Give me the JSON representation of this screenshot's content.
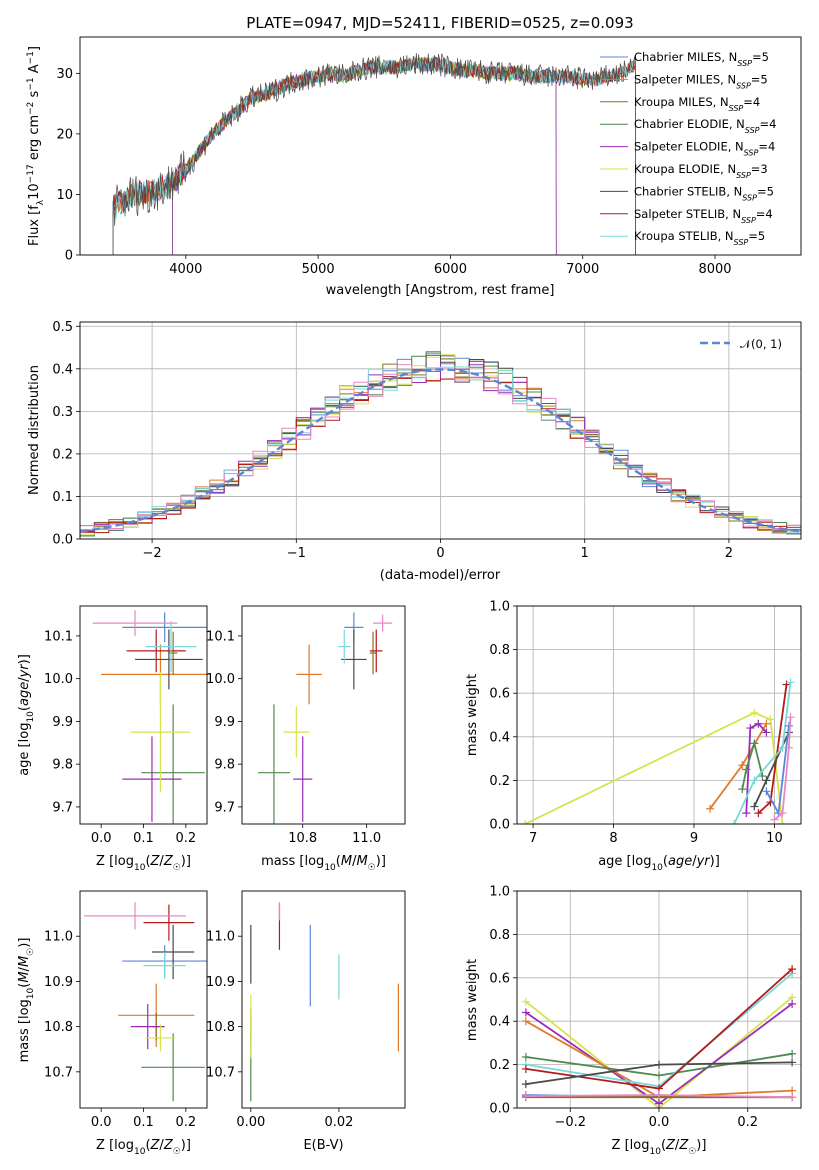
{
  "figure": {
    "title": "PLATE=0947, MJD=52411, FIBERID=0525, z=0.093"
  },
  "colors": {
    "Chabrier MILES": "#5b87d6",
    "Salpeter MILES": "#e07b2b",
    "Kroupa MILES": "#8f6f1a",
    "Chabrier ELODIE": "#4f8a4f",
    "Salpeter ELODIE": "#9a2bb8",
    "Kroupa ELODIE": "#d7e34a",
    "Chabrier STELIB": "#4a4a4a",
    "Salpeter STELIB": "#b31b1b",
    "Kroupa STELIB": "#7ad8dc",
    "pink": "#e887c4",
    "normal": "#5b87d6"
  },
  "chart_data": [
    {
      "id": "spectrum",
      "type": "line",
      "xlabel": "wavelength [Angstrom, rest frame]",
      "ylabel": "Flux [f_λ 10^-17 erg cm^-2 s^-1 A^-1]",
      "xlim": [
        3200,
        8650
      ],
      "ylim": [
        0,
        36
      ],
      "xticks": [
        4000,
        5000,
        6000,
        7000,
        8000
      ],
      "yticks": [
        0,
        10,
        20,
        30
      ],
      "grid": false,
      "legend_position": "right",
      "legend": [
        {
          "series": "Chabrier MILES",
          "label": "Chabrier MILES, N",
          "sub": "SSP",
          "n": "=5"
        },
        {
          "series": "Salpeter MILES",
          "label": "Salpeter MILES, N",
          "sub": "SSP",
          "n": "=5"
        },
        {
          "series": "Kroupa MILES",
          "label": "Kroupa MILES, N",
          "sub": "SSP",
          "n": "=4"
        },
        {
          "series": "Chabrier ELODIE",
          "label": "Chabrier ELODIE, N",
          "sub": "SSP",
          "n": "=4"
        },
        {
          "series": "Salpeter ELODIE",
          "label": "Salpeter ELODIE, N",
          "sub": "SSP",
          "n": "=4"
        },
        {
          "series": "Kroupa ELODIE",
          "label": "Kroupa ELODIE, N",
          "sub": "SSP",
          "n": "=3"
        },
        {
          "series": "Chabrier STELIB",
          "label": "Chabrier STELIB, N",
          "sub": "SSP",
          "n": "=5"
        },
        {
          "series": "Salpeter STELIB",
          "label": "Salpeter STELIB, N",
          "sub": "SSP",
          "n": "=4"
        },
        {
          "series": "Kroupa STELIB",
          "label": "Kroupa STELIB, N",
          "sub": "SSP",
          "n": "=5"
        }
      ],
      "continuum": [
        [
          3450,
          8
        ],
        [
          3600,
          10
        ],
        [
          3700,
          10
        ],
        [
          3800,
          11
        ],
        [
          3900,
          12
        ],
        [
          4000,
          14
        ],
        [
          4100,
          17
        ],
        [
          4200,
          20
        ],
        [
          4300,
          22
        ],
        [
          4400,
          24
        ],
        [
          4500,
          26
        ],
        [
          4600,
          26.5
        ],
        [
          4700,
          27.5
        ],
        [
          4800,
          28.5
        ],
        [
          4900,
          29
        ],
        [
          5000,
          29.5
        ],
        [
          5100,
          30
        ],
        [
          5200,
          29.5
        ],
        [
          5300,
          30.5
        ],
        [
          5400,
          31
        ],
        [
          5500,
          31
        ],
        [
          5600,
          31
        ],
        [
          5700,
          31.5
        ],
        [
          5800,
          31.5
        ],
        [
          5900,
          31.5
        ],
        [
          6000,
          31
        ],
        [
          6100,
          30.5
        ],
        [
          6200,
          30.5
        ],
        [
          6300,
          30
        ],
        [
          6400,
          30
        ],
        [
          6500,
          30
        ],
        [
          6600,
          29.5
        ],
        [
          6700,
          29.5
        ],
        [
          6800,
          29.5
        ],
        [
          6900,
          29.5
        ],
        [
          7000,
          29
        ],
        [
          7100,
          29
        ],
        [
          7200,
          29.5
        ],
        [
          7300,
          30
        ],
        [
          7400,
          31.5
        ]
      ],
      "coverage": {
        "MILES": [
          3450,
          7400
        ],
        "ELODIE": [
          3900,
          6800
        ],
        "STELIB": [
          3450,
          7400
        ]
      },
      "drops_to_zero_at": [
        3500,
        3900,
        6800,
        7400
      ]
    },
    {
      "id": "residuals",
      "type": "line",
      "xlabel": "(data-model)/error",
      "ylabel": "Normed distribution",
      "xlim": [
        -2.5,
        2.5
      ],
      "ylim": [
        0,
        0.51
      ],
      "xticks": [
        -2,
        -1,
        0,
        1,
        2
      ],
      "yticks": [
        0.0,
        0.1,
        0.2,
        0.3,
        0.4,
        0.5
      ],
      "grid": true,
      "legend_position": "top-right",
      "legend": [
        {
          "series": "normal",
          "label": "𝒩(0, 1)"
        }
      ],
      "bin_width": 0.1,
      "series": [
        {
          "name": "Chabrier MILES",
          "values": [
            0.017,
            0.023,
            0.026,
            0.033,
            0.038,
            0.045,
            0.053,
            0.062,
            0.072,
            0.084,
            0.097,
            0.111,
            0.126,
            0.142,
            0.16,
            0.178,
            0.197,
            0.216,
            0.236,
            0.256,
            0.276,
            0.296,
            0.314,
            0.332,
            0.349,
            0.364,
            0.377,
            0.388,
            0.397,
            0.404,
            0.408,
            0.41,
            0.41,
            0.408,
            0.404,
            0.397,
            0.388,
            0.377,
            0.364,
            0.349,
            0.332,
            0.314,
            0.296,
            0.276,
            0.256,
            0.236,
            0.216,
            0.197,
            0.178,
            0.16
          ]
        },
        {
          "name": "Salpeter MILES",
          "values": [
            0.021,
            0.02,
            0.035,
            0.031,
            0.038,
            0.043,
            0.058,
            0.063,
            0.071,
            0.079,
            0.091,
            0.116,
            0.127,
            0.142,
            0.166,
            0.175,
            0.2,
            0.212,
            0.238,
            0.26,
            0.27,
            0.3,
            0.311,
            0.327,
            0.356,
            0.358,
            0.382,
            0.393,
            0.392,
            0.399,
            0.415,
            0.384,
            0.409,
            0.414,
            0.4,
            0.398,
            0.392,
            0.372,
            0.37,
            0.357,
            0.333,
            0.311,
            0.294,
            0.28,
            0.252,
            0.236,
            0.221,
            0.196,
            0.185,
            0.154
          ]
        }
      ],
      "normal_curve": {
        "mu": 0,
        "sigma": 1,
        "style": "dashed"
      }
    },
    {
      "id": "age_vs_Z",
      "type": "scatter",
      "xlabel": "Z [log10(Z/Z☉)]",
      "ylabel": "age [log10(age/yr)]",
      "xlim": [
        -0.05,
        0.25
      ],
      "ylim": [
        9.66,
        10.17
      ],
      "xticks": [
        0.0,
        0.1,
        0.2
      ],
      "yticks": [
        9.7,
        9.8,
        9.9,
        10.0,
        10.1
      ],
      "grid": false,
      "series": [
        {
          "name": "Chabrier MILES",
          "x": 0.15,
          "y": 10.12,
          "xerr": 0.1,
          "yerr": 0.035
        },
        {
          "name": "Salpeter MILES",
          "x": 0.14,
          "y": 10.01,
          "xerr": 0.14,
          "yerr": 0.07
        },
        {
          "name": "Kroupa MILES",
          "x": 0.17,
          "y": 10.06,
          "xerr": 0.01,
          "yerr": 0.05
        },
        {
          "name": "Chabrier ELODIE",
          "x": 0.17,
          "y": 9.78,
          "xerr": 0.075,
          "yerr": 0.16
        },
        {
          "name": "Salpeter ELODIE",
          "x": 0.12,
          "y": 9.765,
          "xerr": 0.07,
          "yerr": 0.1
        },
        {
          "name": "Kroupa ELODIE",
          "x": 0.14,
          "y": 9.875,
          "xerr": 0.07,
          "yerr": 0.14
        },
        {
          "name": "Chabrier STELIB",
          "x": 0.16,
          "y": 10.045,
          "xerr": 0.08,
          "yerr": 0.07
        },
        {
          "name": "Salpeter STELIB",
          "x": 0.13,
          "y": 10.065,
          "xerr": 0.07,
          "yerr": 0.05
        },
        {
          "name": "Kroupa STELIB",
          "x": 0.165,
          "y": 10.075,
          "xerr": 0.06,
          "yerr": 0.06
        },
        {
          "name": "pink",
          "x": 0.08,
          "y": 10.13,
          "xerr": 0.1,
          "yerr": 0.03
        }
      ]
    },
    {
      "id": "age_vs_mass",
      "type": "scatter",
      "xlabel": "mass [log10(M/M☉)]",
      "ylabel": "",
      "xlim": [
        10.61,
        11.12
      ],
      "ylim": [
        9.66,
        10.17
      ],
      "xticks": [
        10.8,
        11.0
      ],
      "yticks": [
        9.7,
        9.8,
        9.9,
        10.0,
        10.1
      ],
      "grid": false,
      "series": [
        {
          "name": "Chabrier MILES",
          "x": 10.96,
          "y": 10.12,
          "xerr": 0.03,
          "yerr": 0.035
        },
        {
          "name": "Salpeter MILES",
          "x": 10.82,
          "y": 10.01,
          "xerr": 0.04,
          "yerr": 0.07
        },
        {
          "name": "Kroupa MILES",
          "x": 11.02,
          "y": 10.06,
          "xerr": 0.01,
          "yerr": 0.05
        },
        {
          "name": "Chabrier ELODIE",
          "x": 10.71,
          "y": 9.78,
          "xerr": 0.05,
          "yerr": 0.16
        },
        {
          "name": "Salpeter ELODIE",
          "x": 10.8,
          "y": 9.765,
          "xerr": 0.03,
          "yerr": 0.1
        },
        {
          "name": "Kroupa ELODIE",
          "x": 10.78,
          "y": 9.875,
          "xerr": 0.04,
          "yerr": 0.06
        },
        {
          "name": "Chabrier STELIB",
          "x": 10.96,
          "y": 10.045,
          "xerr": 0.04,
          "yerr": 0.07
        },
        {
          "name": "Salpeter STELIB",
          "x": 11.03,
          "y": 10.065,
          "xerr": 0.02,
          "yerr": 0.05
        },
        {
          "name": "Kroupa STELIB",
          "x": 10.93,
          "y": 10.075,
          "xerr": 0.02,
          "yerr": 0.04
        },
        {
          "name": "pink",
          "x": 11.05,
          "y": 10.13,
          "xerr": 0.03,
          "yerr": 0.02
        }
      ]
    },
    {
      "id": "mass_weight_vs_age",
      "type": "line",
      "xlabel": "age [log10(age/yr)]",
      "ylabel": "mass weight",
      "xlim": [
        6.8,
        10.33
      ],
      "ylim": [
        0,
        1.0
      ],
      "xticks": [
        7,
        8,
        9,
        10
      ],
      "yticks": [
        0.0,
        0.2,
        0.4,
        0.6,
        0.8,
        1.0
      ],
      "grid": true,
      "series": [
        {
          "name": "Kroupa ELODIE",
          "x": [
            6.9,
            9.75,
            9.95,
            10.1
          ],
          "y": [
            0.0,
            0.51,
            0.48,
            0.0
          ]
        },
        {
          "name": "Salpeter MILES",
          "x": [
            9.2,
            9.6,
            9.9
          ],
          "y": [
            0.07,
            0.27,
            0.46
          ]
        },
        {
          "name": "Salpeter ELODIE",
          "x": [
            9.65,
            9.7,
            9.8,
            9.9
          ],
          "y": [
            0.05,
            0.44,
            0.46,
            0.42
          ]
        },
        {
          "name": "Chabrier ELODIE",
          "x": [
            9.6,
            9.65,
            9.75,
            9.85
          ],
          "y": [
            0.16,
            0.25,
            0.37,
            0.22
          ]
        },
        {
          "name": "Salpeter STELIB",
          "x": [
            9.8,
            9.95,
            10.15
          ],
          "y": [
            0.05,
            0.1,
            0.64
          ]
        },
        {
          "name": "Chabrier STELIB",
          "x": [
            9.75,
            9.9,
            10.18
          ],
          "y": [
            0.08,
            0.2,
            0.42
          ]
        },
        {
          "name": "Kroupa STELIB",
          "x": [
            9.5,
            9.75,
            10.1,
            10.2
          ],
          "y": [
            0.0,
            0.2,
            0.35,
            0.65
          ]
        },
        {
          "name": "Chabrier MILES",
          "x": [
            9.9,
            10.05,
            10.18
          ],
          "y": [
            0.15,
            0.05,
            0.45
          ]
        },
        {
          "name": "pink",
          "x": [
            10.0,
            10.1,
            10.18,
            10.2
          ],
          "y": [
            0.02,
            0.05,
            0.35,
            0.49
          ]
        }
      ]
    },
    {
      "id": "mass_vs_Z",
      "type": "scatter",
      "xlabel": "Z [log10(Z/Z☉)]",
      "ylabel": "mass [log10(M/M☉)]",
      "xlim": [
        -0.05,
        0.25
      ],
      "ylim": [
        10.62,
        11.1
      ],
      "xticks": [
        0.0,
        0.1,
        0.2
      ],
      "yticks": [
        10.7,
        10.8,
        10.9,
        11.0
      ],
      "grid": false,
      "series": [
        {
          "name": "Chabrier MILES",
          "x": 0.15,
          "y": 10.945,
          "xerr": 0.1,
          "yerr": 0.035
        },
        {
          "name": "Salpeter MILES",
          "x": 0.13,
          "y": 10.825,
          "xerr": 0.09,
          "yerr": 0.07
        },
        {
          "name": "Kroupa MILES",
          "x": 0.13,
          "y": 10.8,
          "xerr": 0.01,
          "yerr": 0.03
        },
        {
          "name": "Chabrier ELODIE",
          "x": 0.17,
          "y": 10.71,
          "xerr": 0.075,
          "yerr": 0.075
        },
        {
          "name": "Salpeter ELODIE",
          "x": 0.11,
          "y": 10.8,
          "xerr": 0.04,
          "yerr": 0.05
        },
        {
          "name": "Kroupa ELODIE",
          "x": 0.14,
          "y": 10.775,
          "xerr": 0.035,
          "yerr": 0.03
        },
        {
          "name": "Chabrier STELIB",
          "x": 0.17,
          "y": 10.965,
          "xerr": 0.05,
          "yerr": 0.06
        },
        {
          "name": "Salpeter STELIB",
          "x": 0.16,
          "y": 11.03,
          "xerr": 0.06,
          "yerr": 0.04
        },
        {
          "name": "Kroupa STELIB",
          "x": 0.15,
          "y": 10.935,
          "xerr": 0.05,
          "yerr": 0.03
        },
        {
          "name": "pink",
          "x": 0.08,
          "y": 11.045,
          "xerr": 0.12,
          "yerr": 0.03
        }
      ]
    },
    {
      "id": "mass_vs_ebv",
      "type": "scatter",
      "xlabel": "E(B-V)",
      "ylabel": "",
      "xlim": [
        -0.002,
        0.035
      ],
      "ylim": [
        10.62,
        11.1
      ],
      "xticks": [
        0.0,
        0.02
      ],
      "yticks": [
        10.7,
        10.8,
        10.9,
        11.0
      ],
      "grid": false,
      "series": [
        {
          "name": "Chabrier MILES",
          "x": 0.0135,
          "y": 10.935,
          "xerr": 0.0,
          "yerr": 0.09
        },
        {
          "name": "Salpeter MILES",
          "x": 0.0335,
          "y": 10.82,
          "xerr": 0.0,
          "yerr": 0.075
        },
        {
          "name": "Kroupa MILES",
          "x": 0.0,
          "y": 10.8,
          "xerr": 0.0,
          "yerr": 0.04
        },
        {
          "name": "Chabrier ELODIE",
          "x": 0.0,
          "y": 10.71,
          "xerr": 0.0,
          "yerr": 0.075
        },
        {
          "name": "Kroupa ELODIE",
          "x": 0.0,
          "y": 10.8,
          "xerr": 0.0,
          "yerr": 0.07
        },
        {
          "name": "Chabrier STELIB",
          "x": 0.0,
          "y": 10.96,
          "xerr": 0.0,
          "yerr": 0.065
        },
        {
          "name": "Salpeter STELIB",
          "x": 0.0065,
          "y": 11.02,
          "xerr": 0.0,
          "yerr": 0.05
        },
        {
          "name": "Kroupa STELIB",
          "x": 0.02,
          "y": 10.91,
          "xerr": 0.0,
          "yerr": 0.05
        },
        {
          "name": "pink",
          "x": 0.0065,
          "y": 11.055,
          "xerr": 0.0,
          "yerr": 0.02
        }
      ]
    },
    {
      "id": "mass_weight_vs_Z",
      "type": "line",
      "xlabel": "Z [log10(Z/Z☉)]",
      "ylabel": "mass weight",
      "xlim": [
        -0.32,
        0.32
      ],
      "ylim": [
        0,
        1.0
      ],
      "xticks": [
        -0.2,
        0.0,
        0.2
      ],
      "yticks": [
        0.0,
        0.2,
        0.4,
        0.6,
        0.8,
        1.0
      ],
      "grid": true,
      "x": [
        -0.3,
        0.0,
        0.3
      ],
      "series": [
        {
          "name": "Kroupa ELODIE",
          "values": [
            0.49,
            0.0,
            0.51
          ]
        },
        {
          "name": "Salpeter ELODIE",
          "values": [
            0.44,
            0.02,
            0.48
          ]
        },
        {
          "name": "Salpeter MILES",
          "values": [
            0.4,
            0.05,
            0.08
          ]
        },
        {
          "name": "Chabrier ELODIE",
          "values": [
            0.235,
            0.15,
            0.25
          ]
        },
        {
          "name": "Kroupa STELIB",
          "values": [
            0.2,
            0.1,
            0.62
          ]
        },
        {
          "name": "Salpeter STELIB",
          "values": [
            0.18,
            0.09,
            0.64
          ]
        },
        {
          "name": "Chabrier STELIB",
          "values": [
            0.11,
            0.2,
            0.21
          ]
        },
        {
          "name": "Chabrier MILES",
          "values": [
            0.06,
            0.05,
            0.05
          ]
        },
        {
          "name": "Kroupa MILES",
          "values": [
            0.05,
            0.05,
            0.05
          ]
        },
        {
          "name": "pink",
          "values": [
            0.055,
            0.06,
            0.05
          ]
        }
      ]
    }
  ]
}
